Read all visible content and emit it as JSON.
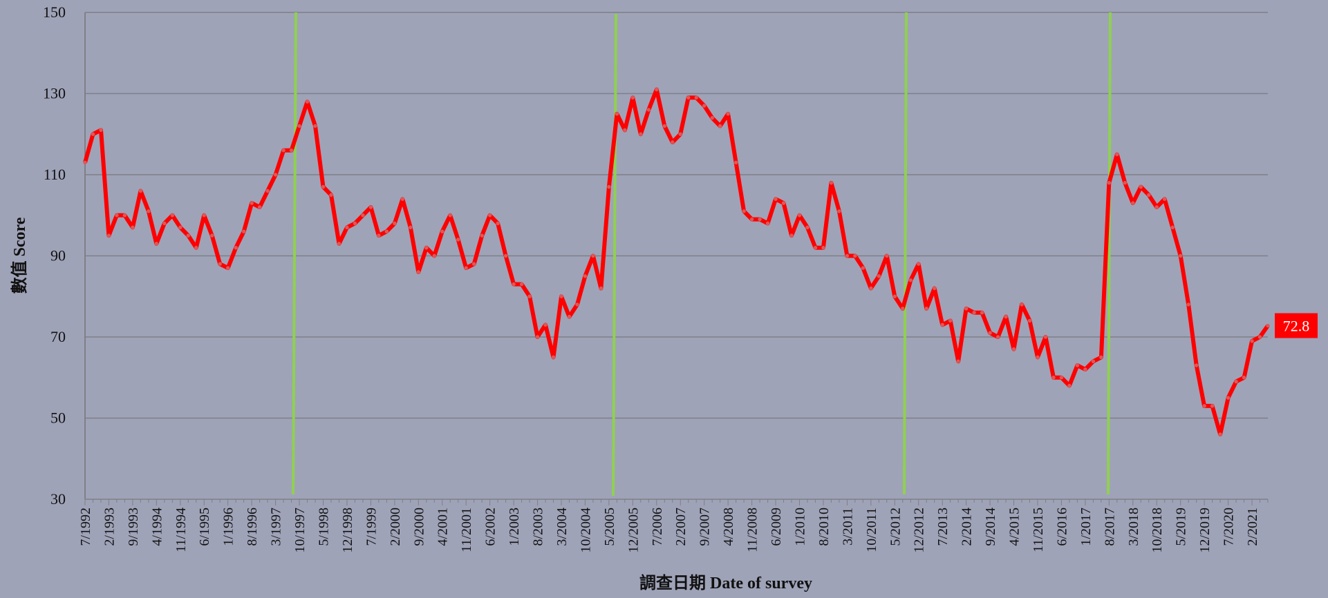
{
  "chart_data": {
    "type": "line",
    "x_label": "調查日期   Date of survey",
    "y_label": "數值 Score",
    "categories": [
      "7/1992",
      null,
      null,
      "2/1993",
      null,
      null,
      "9/1993",
      null,
      null,
      "4/1994",
      null,
      null,
      "11/1994",
      null,
      null,
      "6/1995",
      null,
      null,
      "1/1996",
      null,
      null,
      "8/1996",
      null,
      null,
      "3/1997",
      null,
      null,
      "10/1997",
      null,
      null,
      "5/1998",
      null,
      null,
      "12/1998",
      null,
      null,
      "7/1999",
      null,
      null,
      "2/2000",
      null,
      null,
      "9/2000",
      null,
      null,
      "4/2001",
      null,
      null,
      "11/2001",
      null,
      null,
      "6/2002",
      null,
      null,
      "1/2003",
      null,
      null,
      "8/2003",
      null,
      null,
      "3/2004",
      null,
      null,
      "10/2004",
      null,
      null,
      "5/2005",
      null,
      null,
      "12/2005",
      null,
      null,
      "7/2006",
      null,
      null,
      "2/2007",
      null,
      null,
      "9/2007",
      null,
      null,
      "4/2008",
      null,
      null,
      "11/2008",
      null,
      null,
      "6/2009",
      null,
      null,
      "1/2010",
      null,
      null,
      "8/2010",
      null,
      null,
      "3/2011",
      null,
      null,
      "10/2011",
      null,
      null,
      "5/2012",
      null,
      null,
      "12/2012",
      null,
      null,
      "7/2013",
      null,
      null,
      "2/2014",
      null,
      null,
      "9/2014",
      null,
      null,
      "4/2015",
      null,
      null,
      "11/2015",
      null,
      null,
      "6/2016",
      null,
      null,
      "1/2017",
      null,
      null,
      "8/2017",
      null,
      null,
      "3/2018",
      null,
      null,
      "10/2018",
      null,
      null,
      "5/2019",
      null,
      null,
      "12/2019",
      null,
      null,
      "7/2020",
      null,
      null,
      "2/2021",
      null,
      null
    ],
    "series": [
      {
        "color": "#ff0000",
        "values": [
          113,
          120,
          121,
          95,
          100,
          100,
          97,
          106,
          101,
          93,
          98,
          100,
          97,
          95,
          92,
          100,
          95,
          88,
          87,
          92,
          96,
          103,
          102,
          106,
          110,
          116,
          116,
          122,
          128,
          122,
          107,
          105,
          93,
          97,
          98,
          100,
          102,
          95,
          96,
          98,
          104,
          97,
          86,
          92,
          90,
          96,
          100,
          94,
          87,
          88,
          95,
          100,
          98,
          90,
          83,
          83,
          80,
          70,
          73,
          65,
          80,
          75,
          78,
          85,
          90,
          82,
          107,
          125,
          121,
          129,
          120,
          126,
          131,
          122,
          118,
          120,
          129,
          129,
          127,
          124,
          122,
          125,
          113,
          101,
          99,
          99,
          98,
          104,
          103,
          95,
          100,
          97,
          92,
          92,
          108,
          101,
          90,
          90,
          87,
          82,
          85,
          90,
          80,
          77,
          84,
          88,
          77,
          82,
          73,
          74,
          64,
          77,
          76,
          76,
          71,
          70,
          75,
          67,
          78,
          74,
          65,
          70,
          60,
          60,
          58,
          63,
          62,
          64,
          65,
          108,
          115,
          108,
          103,
          107,
          105,
          102,
          104,
          97,
          90,
          78,
          63,
          53,
          53,
          46,
          55,
          59,
          60,
          69,
          70,
          72.8
        ]
      }
    ],
    "ylim": [
      30,
      150
    ],
    "yticks": [
      30,
      50,
      70,
      90,
      110,
      130,
      150
    ],
    "grid": true
  }
}
